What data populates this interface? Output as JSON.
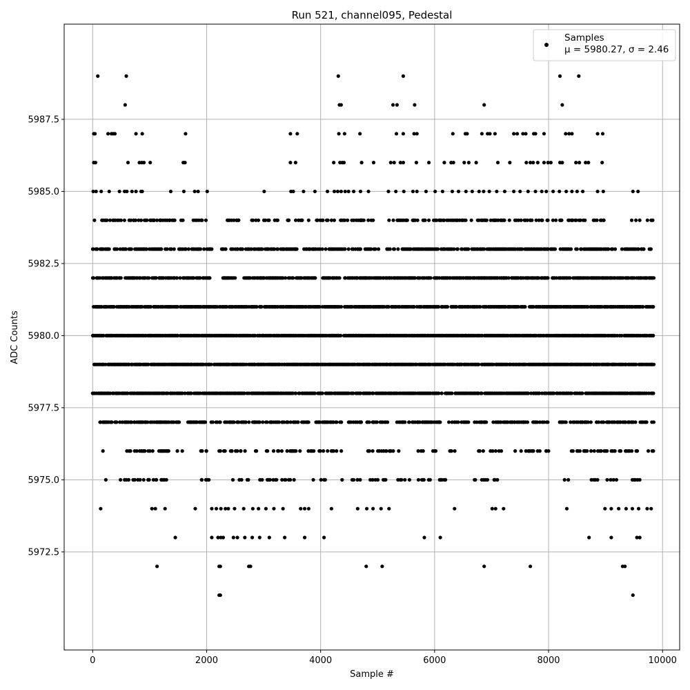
{
  "chart_data": {
    "type": "scatter",
    "title": "Run 521, channel095, Pedestal",
    "xlabel": "Sample #",
    "ylabel": "ADC Counts",
    "xlim": [
      -500,
      10300
    ],
    "ylim": [
      5969.1,
      5990.8
    ],
    "x_ticks": [
      0,
      2000,
      4000,
      6000,
      8000,
      10000
    ],
    "x_tick_labels": [
      "0",
      "2000",
      "4000",
      "6000",
      "8000",
      "10000"
    ],
    "y_ticks": [
      5972.5,
      5975.0,
      5977.5,
      5980.0,
      5982.5,
      5985.0,
      5987.5
    ],
    "y_tick_labels": [
      "5972.5",
      "5975.0",
      "5977.5",
      "5980.0",
      "5982.5",
      "5985.0",
      "5987.5"
    ],
    "grid": true,
    "legend_position": "top-right",
    "series": [
      {
        "name": "Samples",
        "color": "#000000",
        "marker": "circle",
        "stats_label": "μ = 5980.27, σ = 2.46",
        "x_range": [
          0,
          9850
        ],
        "n_samples": 9850,
        "points": [
          [
            90,
            5989
          ],
          [
            590,
            5989
          ],
          [
            4310,
            5989
          ],
          [
            5450,
            5989
          ],
          [
            8200,
            5989
          ],
          [
            8530,
            5989
          ],
          [
            570,
            5988
          ],
          [
            4330,
            5988
          ],
          [
            4360,
            5988
          ],
          [
            5270,
            5988
          ],
          [
            5340,
            5988
          ],
          [
            5650,
            5988
          ],
          [
            6870,
            5988
          ],
          [
            8240,
            5988
          ],
          [
            20,
            5987
          ],
          [
            40,
            5987
          ],
          [
            270,
            5987
          ],
          [
            330,
            5987
          ],
          [
            360,
            5987
          ],
          [
            390,
            5987
          ],
          [
            760,
            5987
          ],
          [
            870,
            5987
          ],
          [
            1630,
            5987
          ],
          [
            3470,
            5987
          ],
          [
            3590,
            5987
          ],
          [
            4320,
            5987
          ],
          [
            4420,
            5987
          ],
          [
            4690,
            5987
          ],
          [
            5330,
            5987
          ],
          [
            5450,
            5987
          ],
          [
            5640,
            5987
          ],
          [
            5690,
            5987
          ],
          [
            6320,
            5987
          ],
          [
            6540,
            5987
          ],
          [
            6570,
            5987
          ],
          [
            6830,
            5987
          ],
          [
            6930,
            5987
          ],
          [
            6970,
            5987
          ],
          [
            7060,
            5987
          ],
          [
            7390,
            5987
          ],
          [
            7450,
            5987
          ],
          [
            7550,
            5987
          ],
          [
            7600,
            5987
          ],
          [
            7740,
            5987
          ],
          [
            7770,
            5987
          ],
          [
            7920,
            5987
          ],
          [
            8300,
            5987
          ],
          [
            8360,
            5987
          ],
          [
            8410,
            5987
          ],
          [
            8860,
            5987
          ],
          [
            8950,
            5987
          ],
          [
            20,
            5986
          ],
          [
            50,
            5986
          ],
          [
            620,
            5986
          ],
          [
            820,
            5986
          ],
          [
            860,
            5986
          ],
          [
            900,
            5986
          ],
          [
            1010,
            5986
          ],
          [
            1590,
            5986
          ],
          [
            1620,
            5986
          ],
          [
            3470,
            5986
          ],
          [
            3560,
            5986
          ],
          [
            4230,
            5986
          ],
          [
            4340,
            5986
          ],
          [
            4380,
            5986
          ],
          [
            4410,
            5986
          ],
          [
            4720,
            5986
          ],
          [
            4930,
            5986
          ],
          [
            5230,
            5986
          ],
          [
            5290,
            5986
          ],
          [
            5400,
            5986
          ],
          [
            5450,
            5986
          ],
          [
            5680,
            5986
          ],
          [
            5900,
            5986
          ],
          [
            6170,
            5986
          ],
          [
            6290,
            5986
          ],
          [
            6330,
            5986
          ],
          [
            6520,
            5986
          ],
          [
            6600,
            5986
          ],
          [
            6730,
            5986
          ],
          [
            7110,
            5986
          ],
          [
            7320,
            5986
          ],
          [
            7610,
            5986
          ],
          [
            7680,
            5986
          ],
          [
            7730,
            5986
          ],
          [
            7810,
            5986
          ],
          [
            7920,
            5986
          ],
          [
            7990,
            5986
          ],
          [
            8040,
            5986
          ],
          [
            8200,
            5986
          ],
          [
            8240,
            5986
          ],
          [
            8480,
            5986
          ],
          [
            8540,
            5986
          ],
          [
            8650,
            5986
          ],
          [
            8700,
            5986
          ],
          [
            8940,
            5986
          ],
          [
            10,
            5985
          ],
          [
            60,
            5985
          ],
          [
            150,
            5985
          ],
          [
            290,
            5985
          ],
          [
            470,
            5985
          ],
          [
            560,
            5985
          ],
          [
            600,
            5985
          ],
          [
            690,
            5985
          ],
          [
            760,
            5985
          ],
          [
            850,
            5985
          ],
          [
            870,
            5985
          ],
          [
            1370,
            5985
          ],
          [
            1600,
            5985
          ],
          [
            1790,
            5985
          ],
          [
            1850,
            5985
          ],
          [
            2010,
            5985
          ],
          [
            3010,
            5985
          ],
          [
            3480,
            5985
          ],
          [
            3520,
            5985
          ],
          [
            3700,
            5985
          ],
          [
            3900,
            5985
          ],
          [
            4120,
            5985
          ],
          [
            4240,
            5985
          ],
          [
            4300,
            5985
          ],
          [
            4360,
            5985
          ],
          [
            4430,
            5985
          ],
          [
            4490,
            5985
          ],
          [
            4580,
            5985
          ],
          [
            4700,
            5985
          ],
          [
            4840,
            5985
          ],
          [
            5190,
            5985
          ],
          [
            5320,
            5985
          ],
          [
            5460,
            5985
          ],
          [
            5620,
            5985
          ],
          [
            5690,
            5985
          ],
          [
            5850,
            5985
          ],
          [
            6010,
            5985
          ],
          [
            6140,
            5985
          ],
          [
            6310,
            5985
          ],
          [
            6420,
            5985
          ],
          [
            6550,
            5985
          ],
          [
            6660,
            5985
          ],
          [
            6780,
            5985
          ],
          [
            6860,
            5985
          ],
          [
            6960,
            5985
          ],
          [
            7090,
            5985
          ],
          [
            7230,
            5985
          ],
          [
            7390,
            5985
          ],
          [
            7500,
            5985
          ],
          [
            7640,
            5985
          ],
          [
            7770,
            5985
          ],
          [
            7880,
            5985
          ],
          [
            7960,
            5985
          ],
          [
            8080,
            5985
          ],
          [
            8190,
            5985
          ],
          [
            8310,
            5985
          ],
          [
            8410,
            5985
          ],
          [
            8500,
            5985
          ],
          [
            8600,
            5985
          ],
          [
            8860,
            5985
          ],
          [
            8960,
            5985
          ],
          [
            9480,
            5985
          ],
          [
            9570,
            5985
          ],
          [
            140,
            5974
          ],
          [
            1040,
            5974
          ],
          [
            1100,
            5974
          ],
          [
            1270,
            5974
          ],
          [
            1800,
            5974
          ],
          [
            2090,
            5974
          ],
          [
            2170,
            5974
          ],
          [
            2250,
            5974
          ],
          [
            2330,
            5974
          ],
          [
            2380,
            5974
          ],
          [
            2490,
            5974
          ],
          [
            2650,
            5974
          ],
          [
            2810,
            5974
          ],
          [
            2910,
            5974
          ],
          [
            3040,
            5974
          ],
          [
            3180,
            5974
          ],
          [
            3340,
            5974
          ],
          [
            3650,
            5974
          ],
          [
            3720,
            5974
          ],
          [
            3790,
            5974
          ],
          [
            4190,
            5974
          ],
          [
            4650,
            5974
          ],
          [
            4810,
            5974
          ],
          [
            4920,
            5974
          ],
          [
            5060,
            5974
          ],
          [
            5200,
            5974
          ],
          [
            6350,
            5974
          ],
          [
            7010,
            5974
          ],
          [
            7070,
            5974
          ],
          [
            7210,
            5974
          ],
          [
            8320,
            5974
          ],
          [
            8990,
            5974
          ],
          [
            9100,
            5974
          ],
          [
            9230,
            5974
          ],
          [
            9360,
            5974
          ],
          [
            9470,
            5974
          ],
          [
            9580,
            5974
          ],
          [
            9730,
            5974
          ],
          [
            9800,
            5974
          ],
          [
            1450,
            5973
          ],
          [
            2090,
            5973
          ],
          [
            2200,
            5973
          ],
          [
            2250,
            5973
          ],
          [
            2290,
            5973
          ],
          [
            2470,
            5973
          ],
          [
            2540,
            5973
          ],
          [
            2670,
            5973
          ],
          [
            2800,
            5973
          ],
          [
            2930,
            5973
          ],
          [
            3100,
            5973
          ],
          [
            3370,
            5973
          ],
          [
            3720,
            5973
          ],
          [
            4060,
            5973
          ],
          [
            5820,
            5973
          ],
          [
            6100,
            5973
          ],
          [
            8710,
            5973
          ],
          [
            9100,
            5973
          ],
          [
            9550,
            5973
          ],
          [
            9600,
            5973
          ],
          [
            1130,
            5972
          ],
          [
            2220,
            5972
          ],
          [
            2240,
            5972
          ],
          [
            2740,
            5972
          ],
          [
            2770,
            5972
          ],
          [
            4800,
            5972
          ],
          [
            5080,
            5972
          ],
          [
            6870,
            5972
          ],
          [
            7680,
            5972
          ],
          [
            9300,
            5972
          ],
          [
            9340,
            5972
          ],
          [
            2220,
            5971
          ],
          [
            2240,
            5971
          ],
          [
            9480,
            5971
          ]
        ],
        "bands": [
          {
            "y": 5984,
            "density": 0.34,
            "gaps": [
              [
                2080,
                2300
              ],
              [
                2620,
                2700
              ],
              [
                3100,
                3180
              ],
              [
                3250,
                3350
              ],
              [
                4990,
                5150
              ],
              [
                5530,
                5600
              ],
              [
                6680,
                6760
              ],
              [
                8720,
                8790
              ],
              [
                8990,
                9430
              ]
            ]
          },
          {
            "y": 5983,
            "density": 0.55,
            "gaps": [
              [
                2150,
                2260
              ],
              [
                5030,
                5150
              ],
              [
                9180,
                9270
              ]
            ]
          },
          {
            "y": 5982,
            "density": 0.68,
            "gaps": [
              [
                2120,
                2260
              ],
              [
                2520,
                2650
              ],
              [
                3920,
                4020
              ],
              [
                4340,
                4400
              ]
            ]
          },
          {
            "y": 5981,
            "density": 0.8,
            "gaps": []
          },
          {
            "y": 5980,
            "density": 0.84,
            "gaps": []
          },
          {
            "y": 5979,
            "density": 0.86,
            "gaps": []
          },
          {
            "y": 5978,
            "density": 0.72,
            "gaps": [
              [
                8610,
                8650
              ]
            ]
          },
          {
            "y": 5977,
            "density": 0.55,
            "gaps": [
              [
                0,
                90
              ],
              [
                1530,
                1650
              ],
              [
                4380,
                4480
              ],
              [
                5220,
                5310
              ],
              [
                6160,
                6250
              ],
              [
                6600,
                6700
              ],
              [
                8010,
                8180
              ],
              [
                8760,
                8830
              ]
            ]
          },
          {
            "y": 5976,
            "density": 0.26,
            "gaps": [
              [
                0,
                180
              ],
              [
                250,
                500
              ],
              [
                1580,
                1900
              ],
              [
                4380,
                4580
              ],
              [
                5420,
                5700
              ],
              [
                6100,
                6250
              ],
              [
                6420,
                6700
              ],
              [
                7250,
                7400
              ],
              [
                8050,
                8280
              ]
            ]
          },
          {
            "y": 5975,
            "density": 0.17,
            "gaps": [
              [
                0,
                200
              ],
              [
                250,
                450
              ],
              [
                1300,
                1900
              ],
              [
                4120,
                4350
              ],
              [
                5600,
                5700
              ],
              [
                6200,
                6640
              ],
              [
                7100,
                7500
              ],
              [
                7600,
                8250
              ],
              [
                8350,
                8700
              ]
            ]
          }
        ]
      }
    ]
  }
}
